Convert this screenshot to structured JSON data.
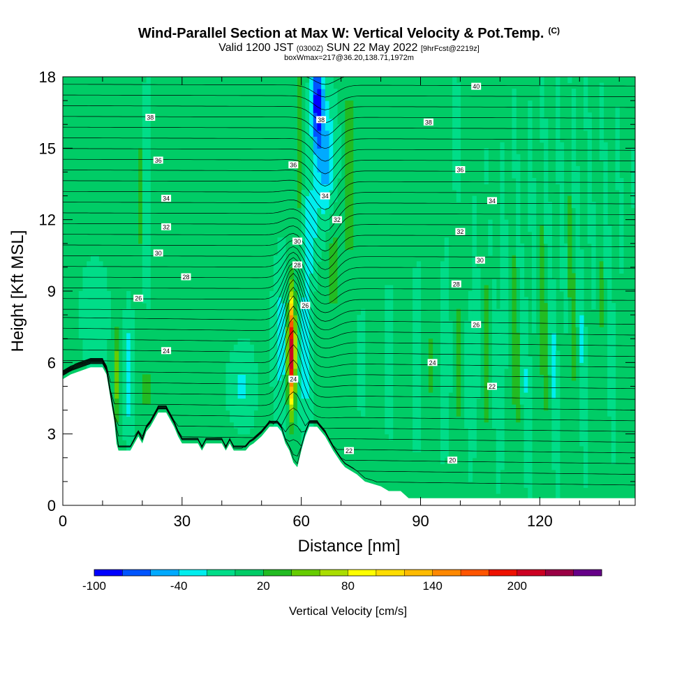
{
  "chart_data": {
    "type": "contour-section",
    "title": "Wind-Parallel Section at Max W: Vertical Velocity & Pot.Temp.",
    "title_mark": "(C)",
    "subtitle_main": "Valid 1200 JST",
    "subtitle_z": "(0300Z)",
    "subtitle_date": "SUN 22 May 2022",
    "subtitle_fcst": "[9hrFcst@2219z]",
    "subtitle2": "boxWmax=217@36.20,138.71,1972m",
    "xlabel": "Distance [nm]",
    "ylabel": "Height [Kft MSL]",
    "xlim": [
      0,
      144
    ],
    "ylim": [
      0,
      18
    ],
    "xticks": [
      0,
      30,
      60,
      90,
      120
    ],
    "yticks": [
      0,
      3,
      6,
      9,
      12,
      15,
      18
    ],
    "colorbar": {
      "label": "Vertical Velocity [cm/s]",
      "levels": [
        -100,
        -80,
        -60,
        -40,
        -20,
        0,
        20,
        40,
        60,
        80,
        100,
        120,
        140,
        160,
        180,
        200,
        220,
        240
      ],
      "tick_labels": [
        "-100",
        "-40",
        "20",
        "80",
        "140",
        "200"
      ],
      "tick_values": [
        -100,
        -40,
        20,
        80,
        140,
        200
      ],
      "colors": [
        "#0000ff",
        "#0055ff",
        "#00aaff",
        "#00eeee",
        "#00dd88",
        "#00cc66",
        "#22bb22",
        "#66cc00",
        "#aadd00",
        "#ffff00",
        "#ffdd00",
        "#ffbb00",
        "#ff8800",
        "#ff5500",
        "#ee1100",
        "#cc0022",
        "#990044",
        "#660088"
      ]
    },
    "theta_contours": [
      {
        "label": "20",
        "x": 98,
        "y": 1.9
      },
      {
        "label": "22",
        "x": 72,
        "y": 2.3
      },
      {
        "label": "22",
        "x": 108,
        "y": 5.0
      },
      {
        "label": "24",
        "x": 26,
        "y": 6.5
      },
      {
        "label": "24",
        "x": 58,
        "y": 5.3
      },
      {
        "label": "24",
        "x": 93,
        "y": 6.0
      },
      {
        "label": "26",
        "x": 19,
        "y": 8.7
      },
      {
        "label": "26",
        "x": 61,
        "y": 8.4
      },
      {
        "label": "26",
        "x": 104,
        "y": 7.6
      },
      {
        "label": "28",
        "x": 31,
        "y": 9.6
      },
      {
        "label": "28",
        "x": 59,
        "y": 10.1
      },
      {
        "label": "28",
        "x": 99,
        "y": 9.3
      },
      {
        "label": "30",
        "x": 24,
        "y": 10.6
      },
      {
        "label": "30",
        "x": 59,
        "y": 11.1
      },
      {
        "label": "30",
        "x": 105,
        "y": 10.3
      },
      {
        "label": "32",
        "x": 26,
        "y": 11.7
      },
      {
        "label": "32",
        "x": 69,
        "y": 12.0
      },
      {
        "label": "32",
        "x": 100,
        "y": 11.5
      },
      {
        "label": "34",
        "x": 26,
        "y": 12.9
      },
      {
        "label": "34",
        "x": 66,
        "y": 13.0
      },
      {
        "label": "34",
        "x": 108,
        "y": 12.8
      },
      {
        "label": "36",
        "x": 24,
        "y": 14.5
      },
      {
        "label": "36",
        "x": 58,
        "y": 14.3
      },
      {
        "label": "36",
        "x": 100,
        "y": 14.1
      },
      {
        "label": "38",
        "x": 22,
        "y": 16.3
      },
      {
        "label": "38",
        "x": 65,
        "y": 16.2
      },
      {
        "label": "38",
        "x": 92,
        "y": 16.1
      },
      {
        "label": "40",
        "x": 104,
        "y": 17.6
      }
    ],
    "terrain": [
      [
        0,
        5.3
      ],
      [
        2,
        5.5
      ],
      [
        7,
        5.8
      ],
      [
        10,
        5.8
      ],
      [
        11,
        5.5
      ],
      [
        12,
        4.5
      ],
      [
        13,
        3.5
      ],
      [
        13.5,
        2.6
      ],
      [
        14,
        2.3
      ],
      [
        17,
        2.3
      ],
      [
        18,
        2.6
      ],
      [
        19,
        2.9
      ],
      [
        20,
        2.6
      ],
      [
        21,
        3.1
      ],
      [
        22,
        3.3
      ],
      [
        23,
        3.6
      ],
      [
        24,
        3.9
      ],
      [
        26,
        3.9
      ],
      [
        27,
        3.6
      ],
      [
        28,
        3.3
      ],
      [
        29,
        2.9
      ],
      [
        30,
        2.6
      ],
      [
        34,
        2.6
      ],
      [
        35,
        2.3
      ],
      [
        36,
        2.6
      ],
      [
        40,
        2.6
      ],
      [
        41,
        2.3
      ],
      [
        42,
        2.6
      ],
      [
        43,
        2.3
      ],
      [
        46,
        2.3
      ],
      [
        47,
        2.5
      ],
      [
        48,
        2.6
      ],
      [
        50,
        2.9
      ],
      [
        52,
        3.3
      ],
      [
        54,
        3.3
      ],
      [
        55,
        3.1
      ],
      [
        56,
        2.6
      ],
      [
        57,
        2.3
      ],
      [
        58,
        1.8
      ],
      [
        59,
        1.6
      ],
      [
        60,
        2.3
      ],
      [
        61,
        2.9
      ],
      [
        62,
        3.3
      ],
      [
        64,
        3.3
      ],
      [
        65,
        3.1
      ],
      [
        66,
        2.9
      ],
      [
        67,
        2.6
      ],
      [
        68,
        2.3
      ],
      [
        70,
        1.8
      ],
      [
        71,
        1.6
      ],
      [
        74,
        1.3
      ],
      [
        76,
        1.0
      ],
      [
        80,
        0.8
      ],
      [
        82,
        0.6
      ],
      [
        85,
        0.6
      ],
      [
        87,
        0.3
      ],
      [
        89,
        0.3
      ],
      [
        144,
        0.3
      ]
    ],
    "max_updraft": {
      "x": 57.5,
      "y": 6.5,
      "value": 217
    }
  }
}
